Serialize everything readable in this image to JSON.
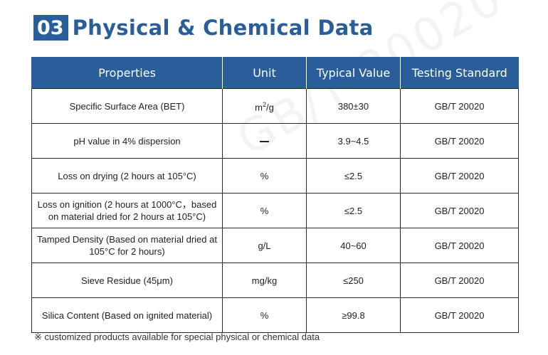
{
  "watermark": "GB/T 20020",
  "header": {
    "badge": "03",
    "title": "Physical & Chemical Data"
  },
  "table": {
    "columns": [
      "Properties",
      "Unit",
      "Typical Value",
      "Testing Standard"
    ],
    "rows": [
      {
        "property": "Specific Surface Area (BET)",
        "unit_base": "m",
        "unit_sup": "2",
        "unit_rest": "/g",
        "value": "380±30",
        "standard": "GB/T 20020"
      },
      {
        "property": "pH value in 4% dispersion",
        "unit": "—",
        "value": "3.9~4.5",
        "standard": "GB/T 20020"
      },
      {
        "property": "Loss on drying (2 hours at 105°C)",
        "unit": "%",
        "value": "≤2.5",
        "standard": "GB/T 20020"
      },
      {
        "property_line1": "Loss on ignition (2 hours at 1000°C，based",
        "property_line2": "on material dried for 2 hours at 105°C)",
        "unit": "%",
        "value": "≤2.5",
        "standard": "GB/T 20020"
      },
      {
        "property_line1": "Tamped Density (Based on material dried at",
        "property_line2": "105°C for 2 hours)",
        "unit": "g/L",
        "value": "40~60",
        "standard": "GB/T 20020"
      },
      {
        "property": "Sieve Residue (45μm)",
        "unit": "mg/kg",
        "value": "≤250",
        "standard": "GB/T 20020"
      },
      {
        "property": "Silica Content (Based on ignited material)",
        "unit": "%",
        "value": "≥99.8",
        "standard": "GB/T 20020"
      }
    ]
  },
  "footnote": "※ customized products available for special physical or chemical data"
}
